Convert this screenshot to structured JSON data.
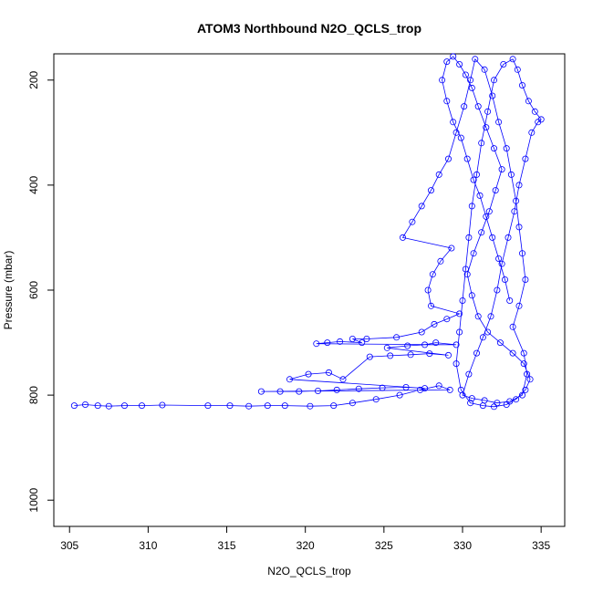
{
  "chart_data": {
    "type": "scatter",
    "title": "ATOM3 Northbound N2O_QCLS_trop",
    "xlabel": "N2O_QCLS_trop",
    "ylabel": "Pressure (mbar)",
    "xlim": [
      304,
      336.5
    ],
    "ylim": [
      1050,
      150
    ],
    "y_reversed": true,
    "x_ticks": [
      305,
      310,
      315,
      320,
      325,
      330,
      335
    ],
    "y_ticks": [
      200,
      400,
      600,
      800,
      1000
    ],
    "grid": false,
    "series": [
      {
        "color": "#0000ff",
        "marker": "open-circle",
        "connected": true,
        "points": [
          [
            305.3,
            820
          ],
          [
            306.0,
            818
          ],
          [
            306.8,
            820
          ],
          [
            307.5,
            821
          ],
          [
            308.5,
            820
          ],
          [
            309.6,
            820
          ],
          [
            310.9,
            819
          ],
          [
            313.8,
            820
          ],
          [
            315.2,
            820
          ],
          [
            316.4,
            821
          ],
          [
            317.6,
            820
          ],
          [
            318.7,
            820
          ],
          [
            320.3,
            821
          ],
          [
            321.8,
            820
          ],
          [
            323.0,
            815
          ],
          [
            324.5,
            808
          ],
          [
            326.0,
            800
          ],
          [
            327.3,
            790
          ],
          [
            328.5,
            782
          ],
          [
            329.2,
            790
          ],
          [
            317.2,
            793
          ],
          [
            318.4,
            793
          ],
          [
            319.6,
            793
          ],
          [
            320.8,
            792
          ],
          [
            322.0,
            790
          ],
          [
            323.4,
            788
          ],
          [
            324.9,
            786
          ],
          [
            326.4,
            785
          ],
          [
            327.6,
            787
          ],
          [
            319.0,
            770
          ],
          [
            320.2,
            760
          ],
          [
            321.5,
            757
          ],
          [
            322.4,
            770
          ],
          [
            324.1,
            727
          ],
          [
            325.4,
            725
          ],
          [
            326.7,
            723
          ],
          [
            327.9,
            721
          ],
          [
            329.1,
            724
          ],
          [
            325.2,
            710
          ],
          [
            326.5,
            706
          ],
          [
            327.6,
            704
          ],
          [
            328.3,
            700
          ],
          [
            329.6,
            704
          ],
          [
            320.7,
            702
          ],
          [
            321.4,
            700
          ],
          [
            322.2,
            698
          ],
          [
            323.6,
            700
          ],
          [
            323.0,
            693
          ],
          [
            323.9,
            693
          ],
          [
            325.8,
            690
          ],
          [
            327.4,
            680
          ],
          [
            328.2,
            665
          ],
          [
            329.0,
            655
          ],
          [
            329.8,
            645
          ],
          [
            328.0,
            630
          ],
          [
            327.8,
            600
          ],
          [
            328.1,
            570
          ],
          [
            328.6,
            545
          ],
          [
            329.3,
            520
          ],
          [
            326.2,
            500
          ],
          [
            326.8,
            470
          ],
          [
            327.4,
            440
          ],
          [
            328.0,
            410
          ],
          [
            328.5,
            380
          ],
          [
            329.1,
            350
          ],
          [
            329.6,
            300
          ],
          [
            330.1,
            250
          ],
          [
            330.5,
            200
          ],
          [
            330.8,
            160
          ],
          [
            331.4,
            180
          ],
          [
            331.9,
            230
          ],
          [
            332.3,
            280
          ],
          [
            332.8,
            330
          ],
          [
            333.1,
            380
          ],
          [
            333.4,
            430
          ],
          [
            333.6,
            480
          ],
          [
            333.8,
            530
          ],
          [
            334.0,
            580
          ],
          [
            333.6,
            630
          ],
          [
            333.2,
            670
          ],
          [
            333.9,
            720
          ],
          [
            334.1,
            760
          ],
          [
            333.8,
            800
          ],
          [
            333.0,
            812
          ],
          [
            332.2,
            815
          ],
          [
            331.4,
            810
          ],
          [
            330.6,
            806
          ],
          [
            330.0,
            800
          ],
          [
            330.4,
            760
          ],
          [
            330.9,
            720
          ],
          [
            331.3,
            690
          ],
          [
            331.8,
            650
          ],
          [
            332.2,
            600
          ],
          [
            332.5,
            550
          ],
          [
            332.9,
            500
          ],
          [
            333.3,
            450
          ],
          [
            333.6,
            400
          ],
          [
            334.0,
            350
          ],
          [
            334.4,
            300
          ],
          [
            334.8,
            280
          ],
          [
            335.0,
            275
          ],
          [
            334.6,
            260
          ],
          [
            334.2,
            240
          ],
          [
            333.8,
            210
          ],
          [
            333.5,
            180
          ],
          [
            333.2,
            160
          ],
          [
            332.6,
            170
          ],
          [
            332.0,
            200
          ],
          [
            331.6,
            260
          ],
          [
            331.2,
            320
          ],
          [
            330.9,
            380
          ],
          [
            330.6,
            440
          ],
          [
            330.4,
            500
          ],
          [
            330.2,
            560
          ],
          [
            330.0,
            620
          ],
          [
            329.8,
            680
          ],
          [
            329.6,
            740
          ],
          [
            329.9,
            790
          ],
          [
            330.5,
            815
          ],
          [
            331.3,
            820
          ],
          [
            332.0,
            822
          ],
          [
            332.8,
            818
          ],
          [
            333.4,
            808
          ],
          [
            334.0,
            790
          ],
          [
            334.3,
            770
          ],
          [
            333.9,
            740
          ],
          [
            333.2,
            720
          ],
          [
            332.4,
            700
          ],
          [
            331.6,
            680
          ],
          [
            331.0,
            650
          ],
          [
            330.6,
            610
          ],
          [
            330.3,
            570
          ],
          [
            330.7,
            530
          ],
          [
            331.2,
            490
          ],
          [
            331.7,
            450
          ],
          [
            332.1,
            410
          ],
          [
            332.5,
            370
          ],
          [
            332.0,
            330
          ],
          [
            331.5,
            290
          ],
          [
            331.0,
            250
          ],
          [
            330.6,
            215
          ],
          [
            330.2,
            190
          ],
          [
            329.8,
            170
          ],
          [
            329.4,
            155
          ],
          [
            329.0,
            165
          ],
          [
            328.7,
            200
          ],
          [
            329.0,
            240
          ],
          [
            329.4,
            280
          ],
          [
            329.9,
            310
          ],
          [
            330.3,
            350
          ],
          [
            330.7,
            390
          ],
          [
            331.1,
            420
          ],
          [
            331.5,
            460
          ],
          [
            331.9,
            500
          ],
          [
            332.3,
            540
          ],
          [
            332.7,
            580
          ],
          [
            333.0,
            620
          ]
        ]
      }
    ]
  }
}
